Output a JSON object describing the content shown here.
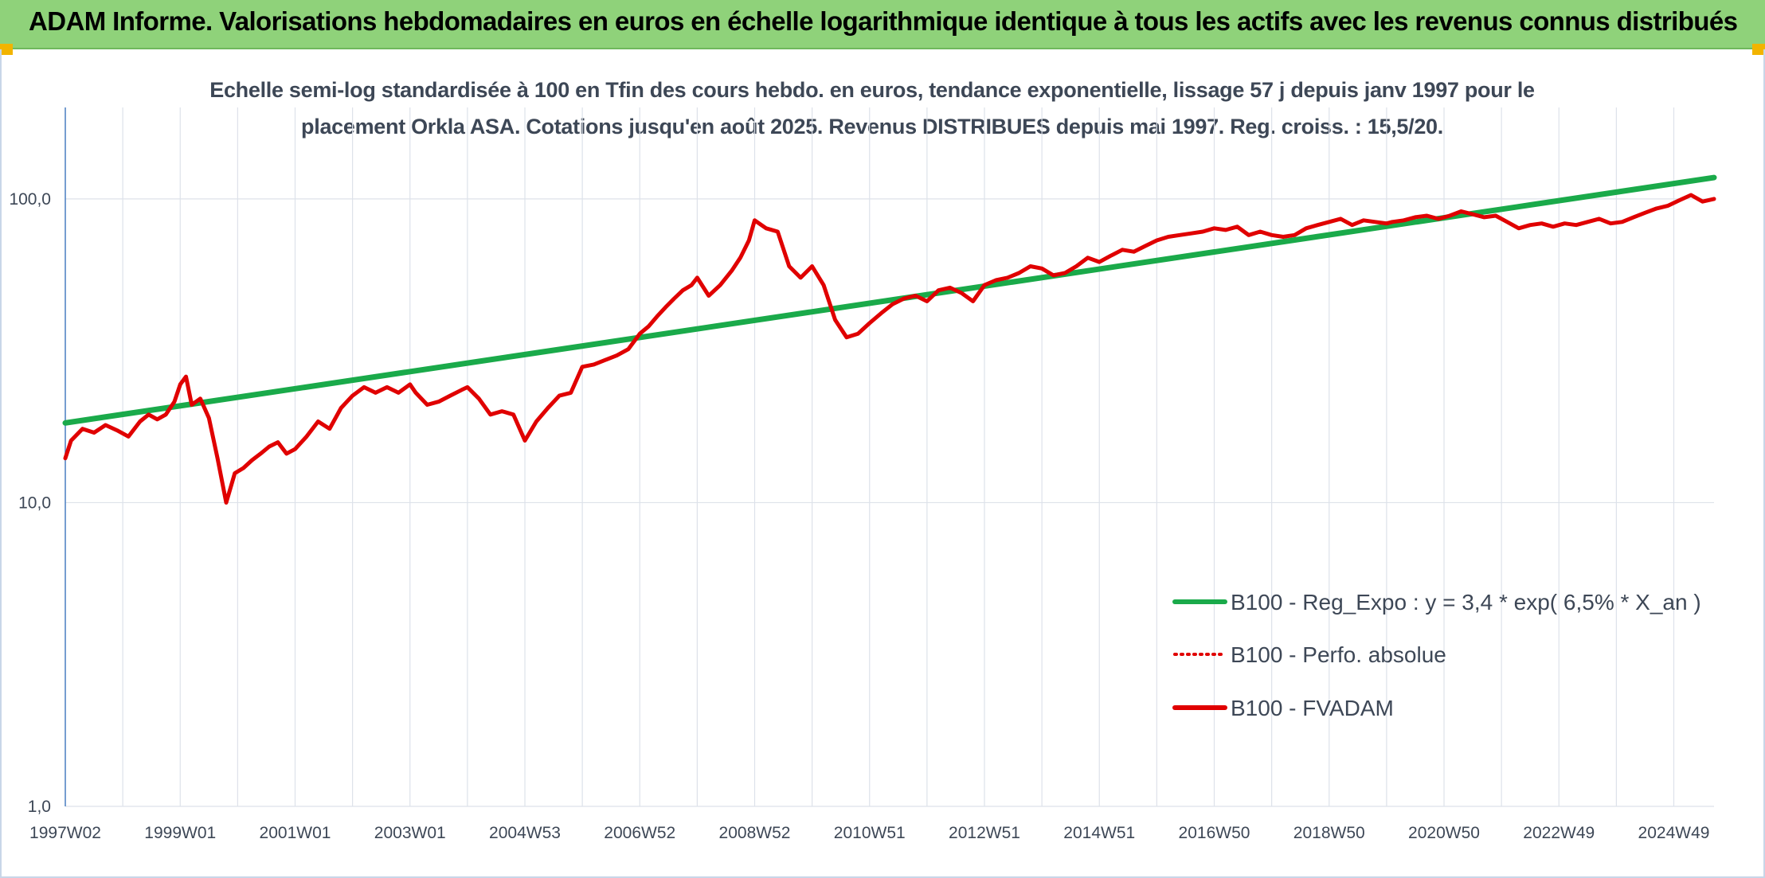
{
  "header": {
    "title": "ADAM Informe. Valorisations hebdomadaires en euros en échelle logarithmique identique à tous les actifs avec les revenus connus distribués",
    "background": "#8fd27a"
  },
  "chart_data": {
    "type": "line",
    "subtitle_line1": "Echelle semi-log standardisée à 100 en Tfin des cours hebdo. en euros, tendance exponentielle, lissage 57 j depuis janv 1997 pour le",
    "subtitle_line2": "placement Orkla ASA. Cotations jusqu'en août 2025. Revenus DISTRIBUES depuis mai 1997. Reg. croiss. : 15,5/20.",
    "y_scale": "log",
    "ylim": [
      1,
      200
    ],
    "y_ticks": [
      1,
      10,
      100
    ],
    "y_tick_labels": [
      "1,0",
      "10,0",
      "100,0"
    ],
    "xlim": [
      1997.0,
      2025.7
    ],
    "x_ticks": [
      1997.0,
      1999.0,
      2001.0,
      2003.0,
      2005.0,
      2007.0,
      2009.0,
      2011.0,
      2013.0,
      2015.0,
      2017.0,
      2019.0,
      2021.0,
      2023.0,
      2025.0
    ],
    "x_tick_labels": [
      "1997W02",
      "1999W01",
      "2001W01",
      "2003W01",
      "2004W53",
      "2006W52",
      "2008W52",
      "2010W51",
      "2012W51",
      "2014W51",
      "2016W50",
      "2018W50",
      "2020W50",
      "2022W49",
      "2024W49"
    ],
    "grid": true,
    "legend_position": "bottom-right",
    "series": [
      {
        "name": "B100 - Reg_Expo : y = 3,4 * exp( 6,5% *  X_an )",
        "color": "#1aaa4a",
        "style": "solid",
        "x": [
          1997.0,
          2025.7
        ],
        "y": [
          18.3,
          117.5
        ]
      },
      {
        "name": "B100 - Perfo. absolue",
        "color": "#e00000",
        "style": "dotted",
        "x": [],
        "y": []
      },
      {
        "name": "B100 - FVADAM",
        "color": "#e00000",
        "style": "solid",
        "x": [
          1997.0,
          1997.1,
          1997.3,
          1997.5,
          1997.7,
          1997.9,
          1998.1,
          1998.3,
          1998.45,
          1998.6,
          1998.75,
          1998.9,
          1999.0,
          1999.1,
          1999.2,
          1999.35,
          1999.5,
          1999.65,
          1999.8,
          1999.95,
          2000.1,
          2000.25,
          2000.4,
          2000.55,
          2000.7,
          2000.85,
          2001.0,
          2001.2,
          2001.4,
          2001.6,
          2001.8,
          2002.0,
          2002.2,
          2002.4,
          2002.6,
          2002.8,
          2003.0,
          2003.1,
          2003.3,
          2003.5,
          2003.7,
          2003.9,
          2004.0,
          2004.2,
          2004.4,
          2004.6,
          2004.8,
          2005.0,
          2005.2,
          2005.4,
          2005.6,
          2005.8,
          2006.0,
          2006.2,
          2006.4,
          2006.6,
          2006.8,
          2007.0,
          2007.15,
          2007.3,
          2007.45,
          2007.6,
          2007.75,
          2007.9,
          2008.0,
          2008.2,
          2008.4,
          2008.6,
          2008.75,
          2008.9,
          2009.0,
          2009.2,
          2009.4,
          2009.6,
          2009.8,
          2010.0,
          2010.2,
          2010.4,
          2010.6,
          2010.8,
          2011.0,
          2011.2,
          2011.4,
          2011.6,
          2011.8,
          2012.0,
          2012.2,
          2012.4,
          2012.6,
          2012.8,
          2013.0,
          2013.2,
          2013.4,
          2013.6,
          2013.8,
          2014.0,
          2014.2,
          2014.4,
          2014.6,
          2014.8,
          2015.0,
          2015.2,
          2015.4,
          2015.6,
          2015.8,
          2016.0,
          2016.2,
          2016.4,
          2016.6,
          2016.8,
          2017.0,
          2017.2,
          2017.4,
          2017.6,
          2017.8,
          2018.0,
          2018.2,
          2018.4,
          2018.6,
          2018.8,
          2019.0,
          2019.2,
          2019.4,
          2019.6,
          2019.8,
          2020.0,
          2020.1,
          2020.3,
          2020.5,
          2020.7,
          2020.9,
          2021.1,
          2021.3,
          2021.5,
          2021.7,
          2021.9,
          2022.1,
          2022.3,
          2022.5,
          2022.7,
          2022.9,
          2023.1,
          2023.3,
          2023.5,
          2023.7,
          2023.9,
          2024.1,
          2024.3,
          2024.5,
          2024.7,
          2024.9,
          2025.1,
          2025.3,
          2025.5,
          2025.7
        ],
        "y": [
          14.0,
          16.0,
          17.5,
          17.0,
          18.0,
          17.3,
          16.5,
          18.5,
          19.5,
          18.8,
          19.5,
          21.5,
          24.5,
          26.0,
          21.0,
          22.0,
          19.0,
          14.0,
          10.0,
          12.5,
          13.0,
          13.8,
          14.5,
          15.3,
          15.8,
          14.5,
          15.0,
          16.5,
          18.5,
          17.5,
          20.5,
          22.5,
          24.0,
          23.0,
          24.0,
          23.0,
          24.5,
          23.0,
          21.0,
          21.5,
          22.5,
          23.5,
          24.0,
          22.0,
          19.5,
          20.0,
          19.5,
          16.0,
          18.5,
          20.5,
          22.5,
          23.0,
          28.0,
          28.5,
          29.5,
          30.5,
          32.0,
          36.0,
          38.0,
          41.0,
          44.0,
          47.0,
          50.0,
          52.0,
          55.0,
          48.0,
          52.0,
          58.0,
          64.0,
          73.0,
          85.0,
          80.0,
          78.0,
          60.0,
          55.0,
          60.0,
          52.0,
          40.0,
          35.0,
          36.0,
          39.0,
          42.0,
          45.0,
          47.0,
          48.0,
          46.0,
          50.0,
          51.0,
          49.0,
          46.0,
          52.0,
          54.0,
          55.0,
          57.0,
          60.0,
          59.0,
          56.0,
          57.0,
          60.0,
          64.0,
          62.0,
          65.0,
          68.0,
          67.0,
          70.0,
          73.0,
          75.0,
          76.0,
          77.0,
          78.0,
          80.0,
          79.0,
          81.0,
          76.0,
          78.0,
          76.0,
          75.0,
          76.0,
          80.0,
          82.0,
          84.0,
          86.0,
          82.0,
          85.0,
          84.0,
          83.0,
          84.0,
          85.0,
          87.0,
          88.0,
          86.0,
          88.0,
          91.0,
          89.0,
          87.0,
          88.0,
          84.0,
          80.0,
          82.0,
          83.0,
          81.0,
          83.0,
          82.0,
          84.0,
          86.0,
          83.0,
          84.0,
          87.0,
          90.0,
          93.0,
          95.0,
          99.0,
          103.0,
          98.0,
          100.0
        ]
      }
    ]
  }
}
